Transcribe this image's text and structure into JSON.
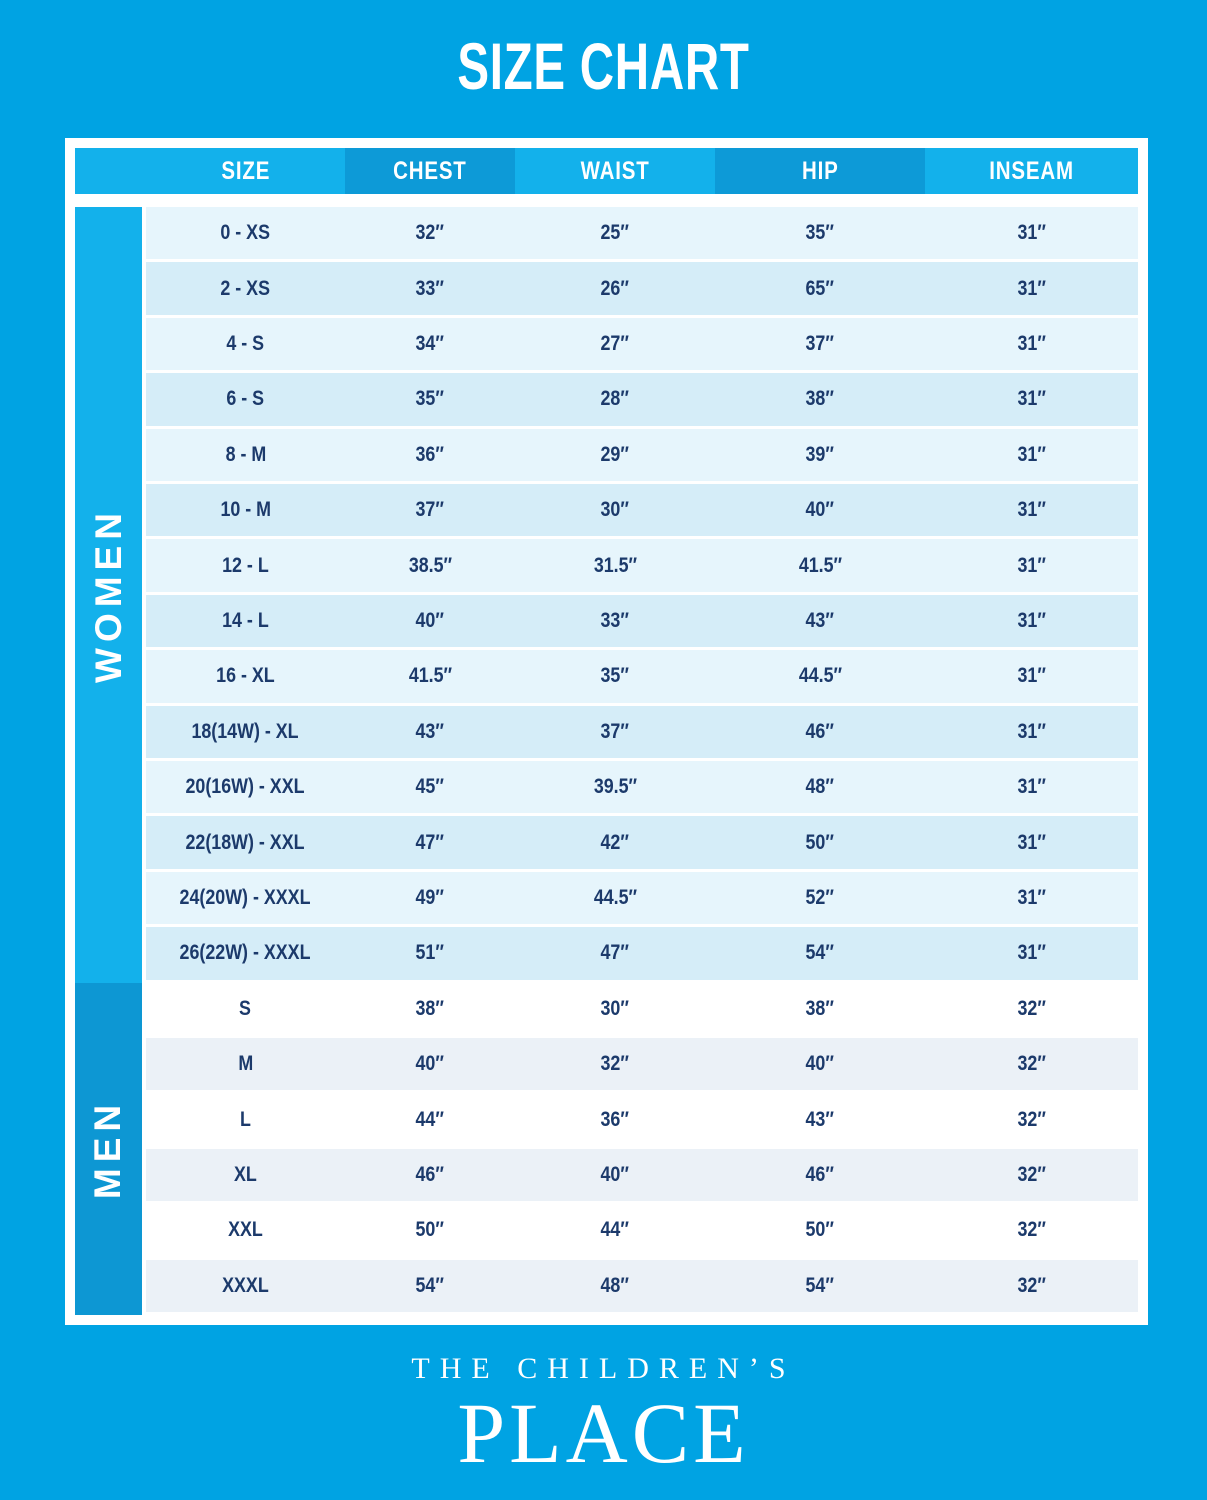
{
  "title": "SIZE CHART",
  "chart_data": {
    "type": "table",
    "title": "SIZE CHART",
    "columns": [
      "SIZE",
      "CHEST",
      "WAIST",
      "HIP",
      "INSEAM"
    ],
    "sections": [
      {
        "label": "WOMEN",
        "rows": [
          [
            "0 - XS",
            "32″",
            "25″",
            "35″",
            "31″"
          ],
          [
            "2 - XS",
            "33″",
            "26″",
            "65″",
            "31″"
          ],
          [
            "4 - S",
            "34″",
            "27″",
            "37″",
            "31″"
          ],
          [
            "6 - S",
            "35″",
            "28″",
            "38″",
            "31″"
          ],
          [
            "8 - M",
            "36″",
            "29″",
            "39″",
            "31″"
          ],
          [
            "10 - M",
            "37″",
            "30″",
            "40″",
            "31″"
          ],
          [
            "12 - L",
            "38.5″",
            "31.5″",
            "41.5″",
            "31″"
          ],
          [
            "14 - L",
            "40″",
            "33″",
            "43″",
            "31″"
          ],
          [
            "16 - XL",
            "41.5″",
            "35″",
            "44.5″",
            "31″"
          ],
          [
            "18(14W) - XL",
            "43″",
            "37″",
            "46″",
            "31″"
          ],
          [
            "20(16W) - XXL",
            "45″",
            "39.5″",
            "48″",
            "31″"
          ],
          [
            "22(18W) - XXL",
            "47″",
            "42″",
            "50″",
            "31″"
          ],
          [
            "24(20W) - XXXL",
            "49″",
            "44.5″",
            "52″",
            "31″"
          ],
          [
            "26(22W) - XXXL",
            "51″",
            "47″",
            "54″",
            "31″"
          ]
        ]
      },
      {
        "label": "MEN",
        "rows": [
          [
            "S",
            "38″",
            "30″",
            "38″",
            "32″"
          ],
          [
            "M",
            "40″",
            "32″",
            "40″",
            "32″"
          ],
          [
            "L",
            "44″",
            "36″",
            "43″",
            "32″"
          ],
          [
            "XL",
            "46″",
            "40″",
            "46″",
            "32″"
          ],
          [
            "XXL",
            "50″",
            "44″",
            "50″",
            "32″"
          ],
          [
            "XXXL",
            "54″",
            "48″",
            "54″",
            "32″"
          ]
        ]
      }
    ]
  },
  "footer": {
    "brand_line1": "THE CHILDREN’S",
    "brand_line2": "PLACE"
  },
  "colors": {
    "background": "#00A3E3",
    "header_light": "#13B1EB",
    "header_dark": "#0D9AD7",
    "sidebar_women": "#13B1EB",
    "sidebar_men": "#0D97D3",
    "row_women_light": "#E6F5FC",
    "row_women_dark": "#D5EDF8",
    "row_men_white": "#FFFFFF",
    "row_men_tint": "#EBF1F7",
    "text_navy": "#1C3A6B",
    "text_white": "#FFFFFF"
  }
}
